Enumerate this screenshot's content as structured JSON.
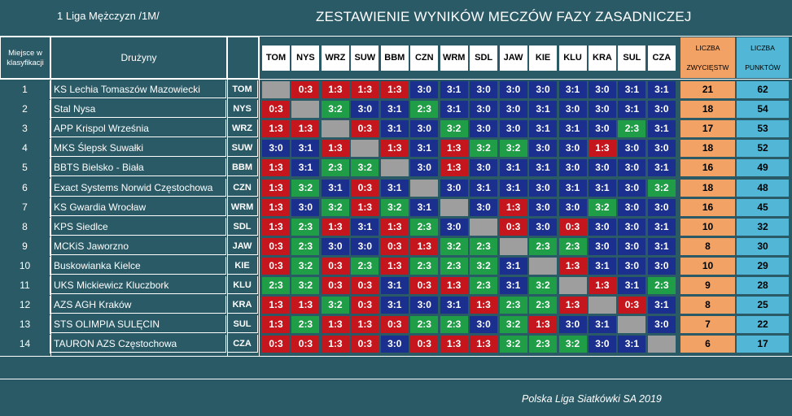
{
  "header": {
    "league": "1 Liga Mężczyzn /1M/",
    "title": "ZESTAWIENIE WYNIKÓW MECZÓW FAZY ZASADNICZEJ"
  },
  "table": {
    "col_place": "Miejsce w klasyfikacji",
    "col_team": "Drużyny",
    "col_wins": [
      "LICZBA",
      "ZWYCIĘSTW"
    ],
    "col_points": [
      "LICZBA",
      "PUNKTÓW"
    ],
    "columns": [
      "TOM",
      "NYS",
      "WRZ",
      "SUW",
      "BBM",
      "CZN",
      "WRM",
      "SDL",
      "JAW",
      "KIE",
      "KLU",
      "KRA",
      "SUL",
      "CZA"
    ],
    "rows": [
      {
        "pos": "1",
        "team": "KS Lechia Tomaszów Mazowiecki",
        "abbr": "TOM",
        "results": [
          "",
          "0:3",
          "1:3",
          "1:3",
          "1:3",
          "3:0",
          "3:1",
          "3:0",
          "3:0",
          "3:0",
          "3:1",
          "3:0",
          "3:1",
          "3:1"
        ],
        "wins": "21",
        "points": "62"
      },
      {
        "pos": "2",
        "team": "Stal Nysa",
        "abbr": "NYS",
        "results": [
          "0:3",
          "",
          "3:2",
          "3:0",
          "3:1",
          "2:3",
          "3:1",
          "3:0",
          "3:0",
          "3:1",
          "3:0",
          "3:0",
          "3:1",
          "3:0"
        ],
        "wins": "18",
        "points": "54"
      },
      {
        "pos": "3",
        "team": "APP Krispol Września",
        "abbr": "WRZ",
        "results": [
          "1:3",
          "1:3",
          "",
          "0:3",
          "3:1",
          "3:0",
          "3:2",
          "3:0",
          "3:0",
          "3:1",
          "3:1",
          "3:0",
          "2:3",
          "3:1"
        ],
        "wins": "17",
        "points": "53"
      },
      {
        "pos": "4",
        "team": "MKS Ślepsk Suwałki",
        "abbr": "SUW",
        "results": [
          "3:0",
          "3:1",
          "1:3",
          "",
          "1:3",
          "3:1",
          "1:3",
          "3:2",
          "3:2",
          "3:0",
          "3:0",
          "1:3",
          "3:0",
          "3:0"
        ],
        "wins": "18",
        "points": "52"
      },
      {
        "pos": "5",
        "team": "BBTS Bielsko - Biała",
        "abbr": "BBM",
        "results": [
          "1:3",
          "3:1",
          "2:3",
          "3:2",
          "",
          "3:0",
          "1:3",
          "3:0",
          "3:1",
          "3:1",
          "3:0",
          "3:0",
          "3:0",
          "3:1"
        ],
        "wins": "16",
        "points": "49"
      },
      {
        "pos": "6",
        "team": "Exact Systems Norwid Częstochowa",
        "abbr": "CZN",
        "results": [
          "1:3",
          "3:2",
          "3:1",
          "0:3",
          "3:1",
          "",
          "3:0",
          "3:1",
          "3:1",
          "3:0",
          "3:1",
          "3:1",
          "3:0",
          "3:2"
        ],
        "wins": "18",
        "points": "48"
      },
      {
        "pos": "7",
        "team": "KS Gwardia Wrocław",
        "abbr": "WRM",
        "results": [
          "1:3",
          "3:0",
          "3:2",
          "1:3",
          "3:2",
          "3:1",
          "",
          "3:0",
          "1:3",
          "3:0",
          "3:0",
          "3:2",
          "3:0",
          "3:0"
        ],
        "wins": "16",
        "points": "45"
      },
      {
        "pos": "8",
        "team": "KPS Siedlce",
        "abbr": "SDL",
        "results": [
          "1:3",
          "2:3",
          "1:3",
          "3:1",
          "1:3",
          "2:3",
          "3:0",
          "",
          "0:3",
          "3:0",
          "0:3",
          "3:0",
          "3:0",
          "3:1"
        ],
        "wins": "10",
        "points": "32"
      },
      {
        "pos": "9",
        "team": "MCKiS Jaworzno",
        "abbr": "JAW",
        "results": [
          "0:3",
          "2:3",
          "3:0",
          "3:0",
          "0:3",
          "1:3",
          "3:2",
          "2:3",
          "",
          "2:3",
          "2:3",
          "3:0",
          "3:0",
          "3:1"
        ],
        "wins": "8",
        "points": "30"
      },
      {
        "pos": "10",
        "team": "Buskowianka Kielce",
        "abbr": "KIE",
        "results": [
          "0:3",
          "3:2",
          "0:3",
          "2:3",
          "1:3",
          "2:3",
          "2:3",
          "3:2",
          "3:1",
          "",
          "1:3",
          "3:1",
          "3:0",
          "3:0"
        ],
        "wins": "10",
        "points": "29"
      },
      {
        "pos": "11",
        "team": "UKS Mickiewicz Kluczbork",
        "abbr": "KLU",
        "results": [
          "2:3",
          "3:2",
          "0:3",
          "0:3",
          "3:1",
          "0:3",
          "1:3",
          "2:3",
          "3:1",
          "3:2",
          "",
          "1:3",
          "3:1",
          "2:3"
        ],
        "wins": "9",
        "points": "28"
      },
      {
        "pos": "12",
        "team": "AZS AGH Kraków",
        "abbr": "KRA",
        "results": [
          "1:3",
          "1:3",
          "3:2",
          "0:3",
          "3:1",
          "3:0",
          "3:1",
          "1:3",
          "2:3",
          "2:3",
          "1:3",
          "",
          "0:3",
          "3:1"
        ],
        "wins": "8",
        "points": "25"
      },
      {
        "pos": "13",
        "team": "STS OLIMPIA SULĘCIN",
        "abbr": "SUL",
        "results": [
          "1:3",
          "2:3",
          "1:3",
          "1:3",
          "0:3",
          "2:3",
          "2:3",
          "3:0",
          "3:2",
          "1:3",
          "3:0",
          "3:1",
          "",
          "3:0"
        ],
        "wins": "7",
        "points": "22"
      },
      {
        "pos": "14",
        "team": "TAURON AZS Częstochowa",
        "abbr": "CZA",
        "results": [
          "0:3",
          "0:3",
          "1:3",
          "0:3",
          "3:0",
          "0:3",
          "1:3",
          "1:3",
          "3:2",
          "2:3",
          "3:2",
          "3:0",
          "3:1",
          ""
        ],
        "wins": "6",
        "points": "17"
      }
    ]
  },
  "colors": {
    "background": "#2a5a66",
    "win": "#1b2f8f",
    "loss": "#c4161c",
    "win_five_set": "#1f9e47",
    "self": "#9e9e9e",
    "wins_column": "#f2a265",
    "points_column": "#52b7d6"
  },
  "footer": "Polska Liga Siatkówki SA 2019"
}
